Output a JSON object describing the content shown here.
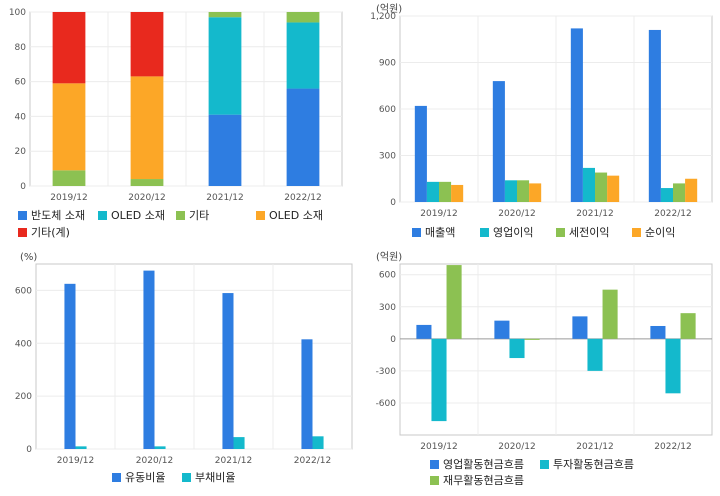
{
  "colors": {
    "blue": "#2e7de1",
    "cyan": "#14b9cc",
    "green": "#8cc152",
    "orange": "#fca727",
    "red": "#e8291e"
  },
  "chart_data": [
    {
      "type": "bar",
      "stacked": true,
      "categories": [
        "2019/12",
        "2020/12",
        "2021/12",
        "2022/12"
      ],
      "ylim": [
        0,
        100
      ],
      "yticks": [
        "0",
        "20",
        "40",
        "60",
        "80",
        "100"
      ],
      "grid": true,
      "series": [
        {
          "name": "반도체 소재",
          "color": "blue",
          "values": [
            0,
            0,
            41,
            56
          ]
        },
        {
          "name": "OLED 소재",
          "color": "cyan",
          "values": [
            0,
            0,
            56,
            38
          ]
        },
        {
          "name": "기타",
          "color": "green",
          "values": [
            9,
            4,
            3,
            6
          ]
        },
        {
          "name": "OLED 소재",
          "color": "orange",
          "values": [
            50,
            59,
            0,
            0
          ]
        },
        {
          "name": "기타(계)",
          "color": "red",
          "values": [
            41,
            37,
            0,
            0
          ]
        }
      ],
      "legend": "bottom"
    },
    {
      "type": "bar",
      "unit": "(억원)",
      "categories": [
        "2019/12",
        "2020/12",
        "2021/12",
        "2022/12"
      ],
      "ylim": [
        0,
        1200
      ],
      "yticks": [
        "0",
        "300",
        "600",
        "900",
        "1,200"
      ],
      "grid": true,
      "series": [
        {
          "name": "매출액",
          "color": "blue",
          "values": [
            620,
            780,
            1120,
            1110
          ]
        },
        {
          "name": "영업이익",
          "color": "cyan",
          "values": [
            130,
            140,
            220,
            90
          ]
        },
        {
          "name": "세전이익",
          "color": "green",
          "values": [
            130,
            140,
            190,
            120
          ]
        },
        {
          "name": "순이익",
          "color": "orange",
          "values": [
            110,
            120,
            170,
            150
          ]
        }
      ],
      "legend": "bottom"
    },
    {
      "type": "bar",
      "unit": "(%)",
      "categories": [
        "2019/12",
        "2020/12",
        "2021/12",
        "2022/12"
      ],
      "ylim": [
        0,
        700
      ],
      "yticks": [
        "0",
        "200",
        "400",
        "600"
      ],
      "grid": true,
      "series": [
        {
          "name": "유동비율",
          "color": "blue",
          "values": [
            625,
            675,
            590,
            415
          ]
        },
        {
          "name": "부채비율",
          "color": "cyan",
          "values": [
            10,
            10,
            45,
            48
          ]
        }
      ],
      "legend": "bottom"
    },
    {
      "type": "bar",
      "unit": "(억원)",
      "categories": [
        "2019/12",
        "2020/12",
        "2021/12",
        "2022/12"
      ],
      "ylim": [
        -900,
        700
      ],
      "yticks": [
        "-600",
        "-300",
        "0",
        "300",
        "600"
      ],
      "grid": true,
      "series": [
        {
          "name": "영업활동현금흐름",
          "color": "blue",
          "values": [
            130,
            170,
            210,
            120
          ]
        },
        {
          "name": "투자활동현금흐름",
          "color": "cyan",
          "values": [
            -770,
            -180,
            -300,
            -510
          ]
        },
        {
          "name": "재무활동현금흐름",
          "color": "green",
          "values": [
            690,
            -10,
            460,
            240
          ]
        }
      ],
      "legend": "bottom"
    }
  ]
}
